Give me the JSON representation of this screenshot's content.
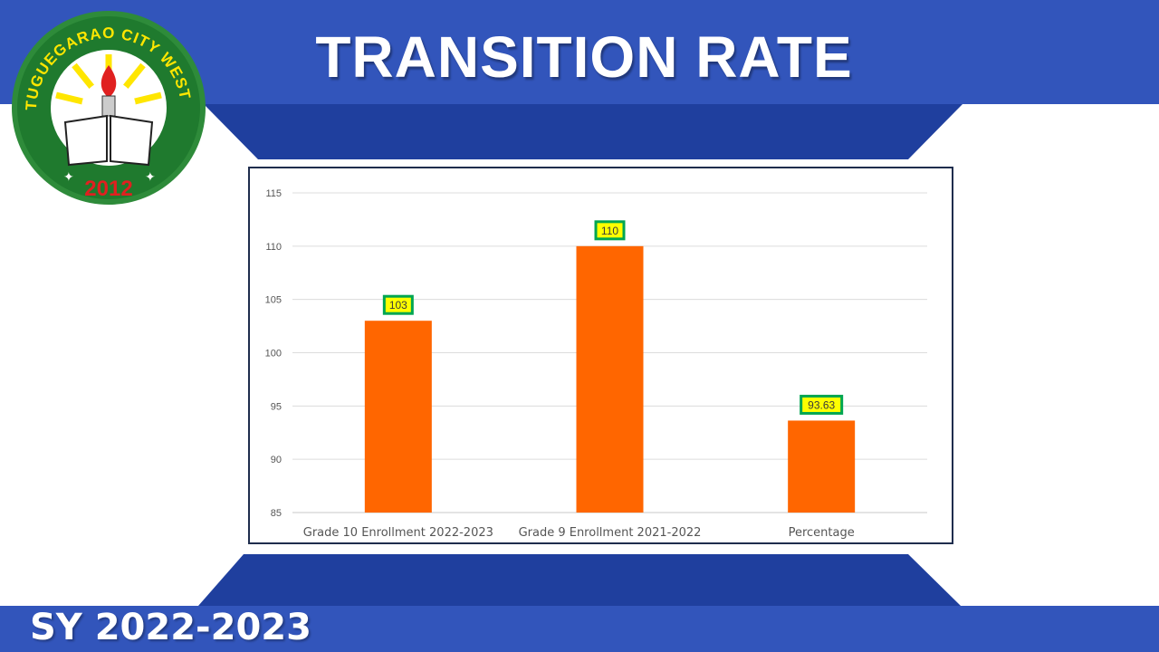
{
  "header": {
    "title": "TRANSITION RATE"
  },
  "footer": {
    "school_year": "SY 2022-2023"
  },
  "logo": {
    "ring_text": "TUGUEGARAO CITY WEST HIGH SCHOOL",
    "year": "2012",
    "icon": "school-seal-icon"
  },
  "colors": {
    "band_blue": "#3255bb",
    "dark_blue": "#1f3f9e",
    "bar_orange": "#ff6600",
    "label_fill": "#ffff00",
    "label_border": "#00a651"
  },
  "chart_data": {
    "type": "bar",
    "categories": [
      "Grade 10 Enrollment 2022-2023",
      "Grade 9 Enrollment 2021-2022",
      "Percentage"
    ],
    "values": [
      103,
      110,
      93.63
    ],
    "data_labels": [
      "103",
      "110",
      "93.63"
    ],
    "ylim": [
      85,
      115
    ],
    "yticks": [
      85,
      90,
      95,
      100,
      105,
      110,
      115
    ],
    "grid": true,
    "legend": "none"
  }
}
